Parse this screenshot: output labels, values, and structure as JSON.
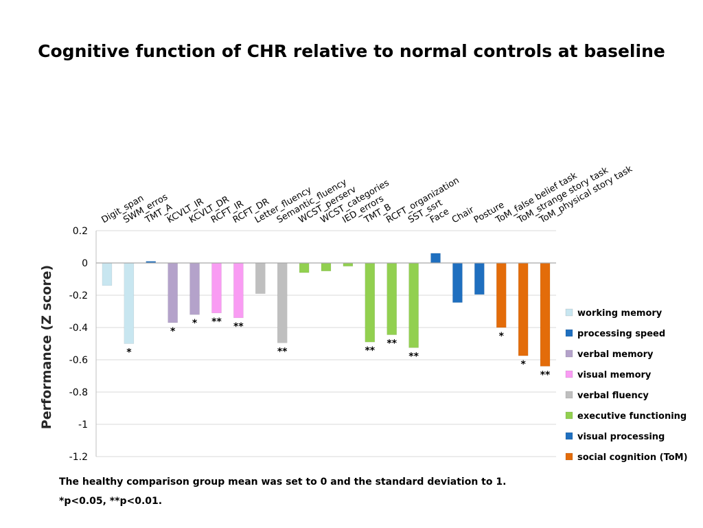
{
  "title": "Cognitive function of CHR relative to normal controls at baseline",
  "footnotes": [
    "The healthy comparison group mean was set to 0 and the standard deviation to 1.",
    "*p<0.05, **p<0.01."
  ],
  "colors": {
    "working memory": "#c8e6f0",
    "processing speed": "#1f6fbf",
    "verbal memory": "#b4a2ca",
    "visual memory": "#f99cf3",
    "verbal fluency": "#bfbfbf",
    "executive functioning": "#92d050",
    "visual processing": "#1f6fbf",
    "social cognition (ToM)": "#e36c0a"
  },
  "chart_data": {
    "type": "bar",
    "ylabel": "Performance (Z score)",
    "xlabel": "",
    "ylim": [
      -1.2,
      0.2
    ],
    "yticks": [
      0.2,
      0,
      -0.2,
      -0.4,
      -0.6,
      -0.8,
      -1,
      -1.2
    ],
    "ytick_labels": [
      "0.2",
      "0",
      "-0.2",
      "-0.4",
      "-0.6",
      "-0.8",
      "-1",
      "-1.2"
    ],
    "grid": true,
    "legend_position": "right",
    "categories": [
      "Digit_span",
      "SWM_erros",
      "TMT_A",
      "KCVLT_IR",
      "KCVLT_DR",
      "RCFT_IR",
      "RCFT_DR",
      "Letter_fluency",
      "Semantic_fluency",
      "WCST_perserv",
      "WCST_categories",
      "IED_errors",
      "TMT_B",
      "RCFT_organization",
      "SST_ssrt",
      "Face",
      "Chair",
      "Posture",
      "ToM_false belief task",
      "ToM_strange story task",
      "ToM_physical story task"
    ],
    "values": [
      -0.14,
      -0.5,
      0.01,
      -0.37,
      -0.32,
      -0.31,
      -0.34,
      -0.19,
      -0.495,
      -0.06,
      -0.05,
      -0.02,
      -0.49,
      -0.445,
      -0.525,
      0.06,
      -0.245,
      -0.195,
      -0.4,
      -0.575,
      -0.64
    ],
    "groups": [
      "working memory",
      "working memory",
      "processing speed",
      "verbal memory",
      "verbal memory",
      "visual memory",
      "visual memory",
      "verbal fluency",
      "verbal fluency",
      "executive functioning",
      "executive functioning",
      "executive functioning",
      "executive functioning",
      "executive functioning",
      "executive functioning",
      "visual processing",
      "visual processing",
      "visual processing",
      "social cognition (ToM)",
      "social cognition (ToM)",
      "social cognition (ToM)"
    ],
    "significance": [
      "",
      "*",
      "",
      "*",
      "*",
      "**",
      "**",
      "",
      "**",
      "",
      "",
      "",
      "**",
      "**",
      "**",
      "",
      "",
      "",
      "*",
      "*",
      "**"
    ],
    "legend": [
      "working memory",
      "processing speed",
      "verbal memory",
      "visual memory",
      "verbal fluency",
      "executive functioning",
      "visual processing",
      "social cognition (ToM)"
    ]
  }
}
